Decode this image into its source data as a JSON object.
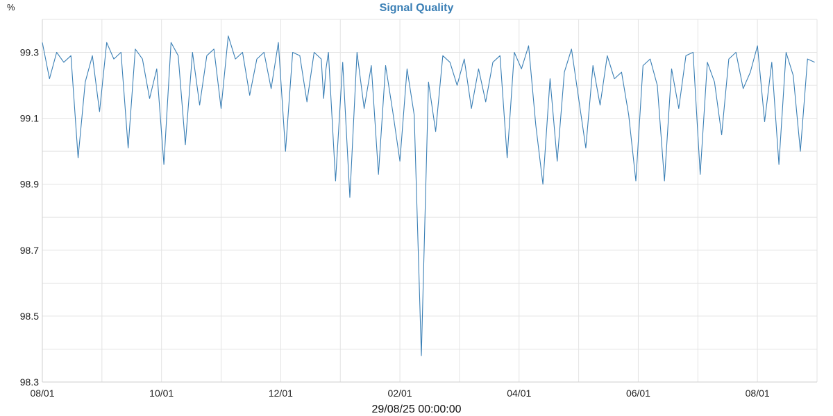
{
  "chart_data": {
    "type": "line",
    "title": "Signal Quality",
    "y_unit": "%",
    "x_caption": "29/08/25 00:00:00",
    "x_ticks": [
      "08/01",
      "10/01",
      "12/01",
      "02/01",
      "04/01",
      "06/01",
      "08/01"
    ],
    "x_range_months": [
      0,
      13
    ],
    "y_ticks": [
      "98.3",
      "98.5",
      "98.7",
      "98.9",
      "99.1",
      "99.3"
    ],
    "ylim": [
      98.3,
      99.4
    ],
    "grid": true,
    "series": [
      {
        "color": "#3a7fb5",
        "x_months_since_aug01": [
          0.0,
          0.12,
          0.24,
          0.36,
          0.48,
          0.6,
          0.72,
          0.84,
          0.96,
          1.08,
          1.2,
          1.32,
          1.44,
          1.56,
          1.68,
          1.8,
          1.92,
          2.04,
          2.16,
          2.28,
          2.4,
          2.52,
          2.64,
          2.76,
          2.88,
          3.0,
          3.12,
          3.24,
          3.36,
          3.48,
          3.6,
          3.72,
          3.84,
          3.96,
          4.08,
          4.2,
          4.32,
          4.44,
          4.56,
          4.68,
          4.72,
          4.76,
          4.8,
          4.92,
          5.04,
          5.16,
          5.28,
          5.4,
          5.52,
          5.64,
          5.76,
          5.88,
          6.0,
          6.12,
          6.24,
          6.36,
          6.48,
          6.6,
          6.72,
          6.84,
          6.96,
          7.08,
          7.2,
          7.32,
          7.44,
          7.56,
          7.68,
          7.8,
          7.92,
          8.04,
          8.16,
          8.28,
          8.4,
          8.52,
          8.64,
          8.76,
          8.88,
          9.0,
          9.12,
          9.24,
          9.36,
          9.48,
          9.6,
          9.72,
          9.84,
          9.96,
          10.08,
          10.2,
          10.32,
          10.44,
          10.56,
          10.68,
          10.8,
          10.92,
          11.04,
          11.16,
          11.28,
          11.4,
          11.52,
          11.64,
          11.76,
          11.88,
          12.0,
          12.12,
          12.24,
          12.36,
          12.48,
          12.6,
          12.72,
          12.84,
          12.96
        ],
        "values": [
          99.33,
          99.22,
          99.3,
          99.27,
          99.29,
          98.98,
          99.21,
          99.29,
          99.12,
          99.33,
          99.28,
          99.3,
          99.01,
          99.31,
          99.28,
          99.16,
          99.25,
          98.96,
          99.33,
          99.29,
          99.02,
          99.3,
          99.14,
          99.29,
          99.31,
          99.13,
          99.35,
          99.28,
          99.3,
          99.17,
          99.28,
          99.3,
          99.19,
          99.33,
          99.0,
          99.3,
          99.29,
          99.15,
          99.3,
          99.28,
          99.16,
          99.25,
          99.3,
          98.91,
          99.27,
          98.86,
          99.3,
          99.13,
          99.26,
          98.93,
          99.26,
          99.12,
          98.97,
          99.25,
          99.11,
          98.38,
          99.21,
          99.06,
          99.29,
          99.27,
          99.2,
          99.28,
          99.13,
          99.25,
          99.15,
          99.27,
          99.29,
          98.98,
          99.3,
          99.25,
          99.32,
          99.08,
          98.9,
          99.22,
          98.97,
          99.24,
          99.31,
          99.16,
          99.01,
          99.26,
          99.14,
          99.29,
          99.22,
          99.24,
          99.11,
          98.91,
          99.26,
          99.28,
          99.2,
          98.91,
          99.25,
          99.13,
          99.29,
          99.3,
          98.93,
          99.27,
          99.21,
          99.05,
          99.28,
          99.3,
          99.19,
          99.24,
          99.32,
          99.09,
          99.27,
          98.96,
          99.3,
          99.23,
          99.0,
          99.28,
          99.27
        ]
      }
    ]
  }
}
